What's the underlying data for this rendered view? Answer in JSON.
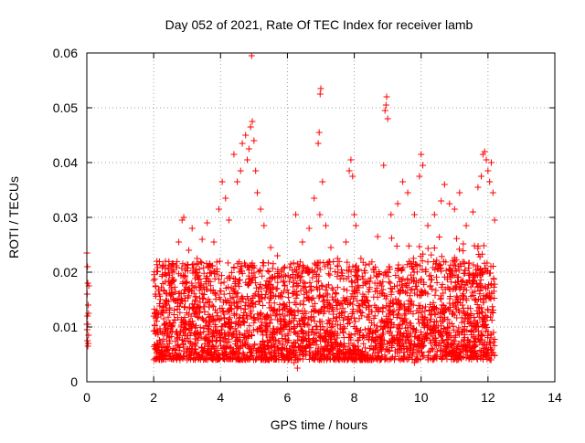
{
  "chart_data": {
    "type": "scatter",
    "title": "Day 052 of 2021, Rate Of TEC Index for receiver lamb",
    "xlabel": "GPS time / hours",
    "ylabel": "ROTI / TECUs",
    "xlim": [
      0,
      14
    ],
    "ylim": [
      0,
      0.06
    ],
    "x_ticks": [
      "0",
      "2",
      "4",
      "6",
      "8",
      "10",
      "12",
      "14"
    ],
    "y_ticks": [
      "0",
      "0.01",
      "0.02",
      "0.03",
      "0.04",
      "0.05",
      "0.06"
    ],
    "grid": true,
    "marker": "+",
    "color": "#ff0000",
    "series": [
      {
        "name": "",
        "points": [
          [
            0.0,
            0.0235
          ],
          [
            0.02,
            0.021
          ],
          [
            0.03,
            0.018
          ],
          [
            0.01,
            0.016
          ],
          [
            0.04,
            0.014
          ],
          [
            0.02,
            0.012
          ],
          [
            0.03,
            0.0105
          ],
          [
            0.01,
            0.0095
          ],
          [
            0.05,
            0.0085
          ],
          [
            0.02,
            0.0075
          ],
          [
            0.04,
            0.007
          ],
          [
            0.03,
            0.0065
          ],
          [
            0.06,
            0.0175
          ],
          [
            0.05,
            0.0125
          ],
          [
            0.0,
            0.0105
          ],
          [
            2.0,
            0.0185
          ],
          [
            2.05,
            0.016
          ],
          [
            2.1,
            0.013
          ],
          [
            2.2,
            0.015
          ],
          [
            2.3,
            0.0115
          ],
          [
            2.45,
            0.0185
          ],
          [
            2.6,
            0.02
          ],
          [
            2.75,
            0.0255
          ],
          [
            2.85,
            0.0295
          ],
          [
            2.9,
            0.03
          ],
          [
            3.05,
            0.024
          ],
          [
            3.15,
            0.028
          ],
          [
            3.2,
            0.0215
          ],
          [
            3.3,
            0.0225
          ],
          [
            3.45,
            0.026
          ],
          [
            3.6,
            0.029
          ],
          [
            3.8,
            0.0255
          ],
          [
            3.95,
            0.0315
          ],
          [
            4.05,
            0.0365
          ],
          [
            4.15,
            0.0335
          ],
          [
            4.25,
            0.0295
          ],
          [
            4.4,
            0.0415
          ],
          [
            4.5,
            0.0365
          ],
          [
            4.6,
            0.0385
          ],
          [
            4.65,
            0.0435
          ],
          [
            4.75,
            0.045
          ],
          [
            4.8,
            0.0405
          ],
          [
            4.85,
            0.0425
          ],
          [
            4.9,
            0.0465
          ],
          [
            4.95,
            0.0475
          ],
          [
            5.0,
            0.044
          ],
          [
            5.05,
            0.0385
          ],
          [
            5.1,
            0.0345
          ],
          [
            5.2,
            0.0315
          ],
          [
            5.3,
            0.0285
          ],
          [
            5.5,
            0.0245
          ],
          [
            5.7,
            0.023
          ],
          [
            5.9,
            0.0195
          ],
          [
            6.1,
            0.0215
          ],
          [
            6.25,
            0.0305
          ],
          [
            6.45,
            0.0255
          ],
          [
            6.65,
            0.028
          ],
          [
            6.8,
            0.0335
          ],
          [
            6.92,
            0.0435
          ],
          [
            6.95,
            0.0455
          ],
          [
            7.0,
            0.0535
          ],
          [
            6.98,
            0.0525
          ],
          [
            7.05,
            0.0365
          ],
          [
            6.97,
            0.0305
          ],
          [
            7.15,
            0.0285
          ],
          [
            7.3,
            0.0245
          ],
          [
            7.5,
            0.0225
          ],
          [
            7.75,
            0.0255
          ],
          [
            7.85,
            0.0385
          ],
          [
            7.9,
            0.0405
          ],
          [
            7.95,
            0.0375
          ],
          [
            8.0,
            0.0305
          ],
          [
            8.05,
            0.0285
          ],
          [
            8.2,
            0.0225
          ],
          [
            8.45,
            0.0215
          ],
          [
            8.7,
            0.0265
          ],
          [
            8.88,
            0.0395
          ],
          [
            8.92,
            0.0495
          ],
          [
            8.95,
            0.0505
          ],
          [
            8.97,
            0.052
          ],
          [
            9.0,
            0.048
          ],
          [
            9.1,
            0.0305
          ],
          [
            9.3,
            0.0325
          ],
          [
            9.45,
            0.0365
          ],
          [
            9.6,
            0.0345
          ],
          [
            9.8,
            0.0305
          ],
          [
            9.95,
            0.0375
          ],
          [
            10.0,
            0.0415
          ],
          [
            10.05,
            0.0395
          ],
          [
            10.2,
            0.0285
          ],
          [
            10.4,
            0.0305
          ],
          [
            10.6,
            0.033
          ],
          [
            10.7,
            0.036
          ],
          [
            10.85,
            0.0325
          ],
          [
            11.0,
            0.0315
          ],
          [
            11.15,
            0.0345
          ],
          [
            11.35,
            0.0285
          ],
          [
            11.55,
            0.031
          ],
          [
            11.7,
            0.0355
          ],
          [
            11.8,
            0.0375
          ],
          [
            11.85,
            0.0415
          ],
          [
            11.9,
            0.042
          ],
          [
            11.95,
            0.0405
          ],
          [
            12.0,
            0.0385
          ],
          [
            12.05,
            0.0365
          ],
          [
            12.1,
            0.04
          ],
          [
            12.15,
            0.0345
          ],
          [
            12.2,
            0.0295
          ],
          [
            4.93,
            0.0595
          ],
          [
            6.3,
            0.0025
          ],
          [
            6.2,
            0.0035
          ],
          [
            9.8,
            0.0035
          ],
          [
            3.0,
            0.004
          ],
          [
            5.3,
            0.004
          ],
          [
            7.7,
            0.004
          ]
        ]
      }
    ],
    "dense_regions": [
      {
        "x_from": 2.0,
        "x_to": 12.2,
        "y_from": 0.004,
        "y_to": 0.022,
        "density": "dense band of + markers"
      }
    ]
  }
}
